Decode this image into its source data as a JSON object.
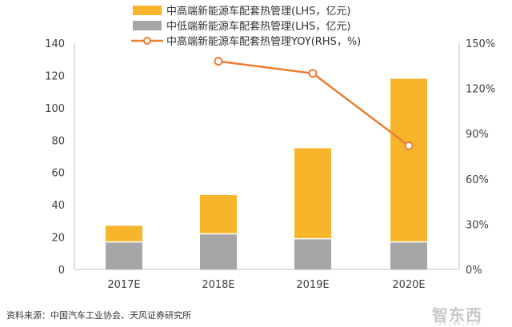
{
  "chart_data": {
    "type": "bar",
    "categories": [
      "2017E",
      "2018E",
      "2019E",
      "2020E"
    ],
    "series": [
      {
        "name": "中高端新能源车配套热管理(LHS，亿元)",
        "kind": "bar-stack",
        "axis": "left",
        "color": "#F7B52C",
        "values": [
          10,
          24,
          56,
          101
        ]
      },
      {
        "name": "中低端新能源车配套热管理(LHS，亿元)",
        "kind": "bar-stack",
        "axis": "left",
        "color": "#A6A6A6",
        "values": [
          17,
          22,
          19,
          17
        ]
      },
      {
        "name": "中高端新能源车配套热管理YOY(RHS，%)",
        "kind": "line",
        "axis": "right",
        "color": "#ED7D31",
        "values": [
          null,
          138,
          130,
          82
        ]
      }
    ],
    "left_axis": {
      "ylim": [
        0,
        140
      ],
      "ticks": [
        "0",
        "20",
        "40",
        "60",
        "80",
        "100",
        "120",
        "140"
      ]
    },
    "right_axis": {
      "ylim": [
        0,
        150
      ],
      "ticks": [
        "0%",
        "30%",
        "60%",
        "90%",
        "120%",
        "150%"
      ]
    },
    "legend_position": "top"
  },
  "footer": {
    "source": "资料来源：中国汽车工业协会、天风证券研究所",
    "watermark": "智东西",
    "watermark_sub": "zhidx.com"
  }
}
